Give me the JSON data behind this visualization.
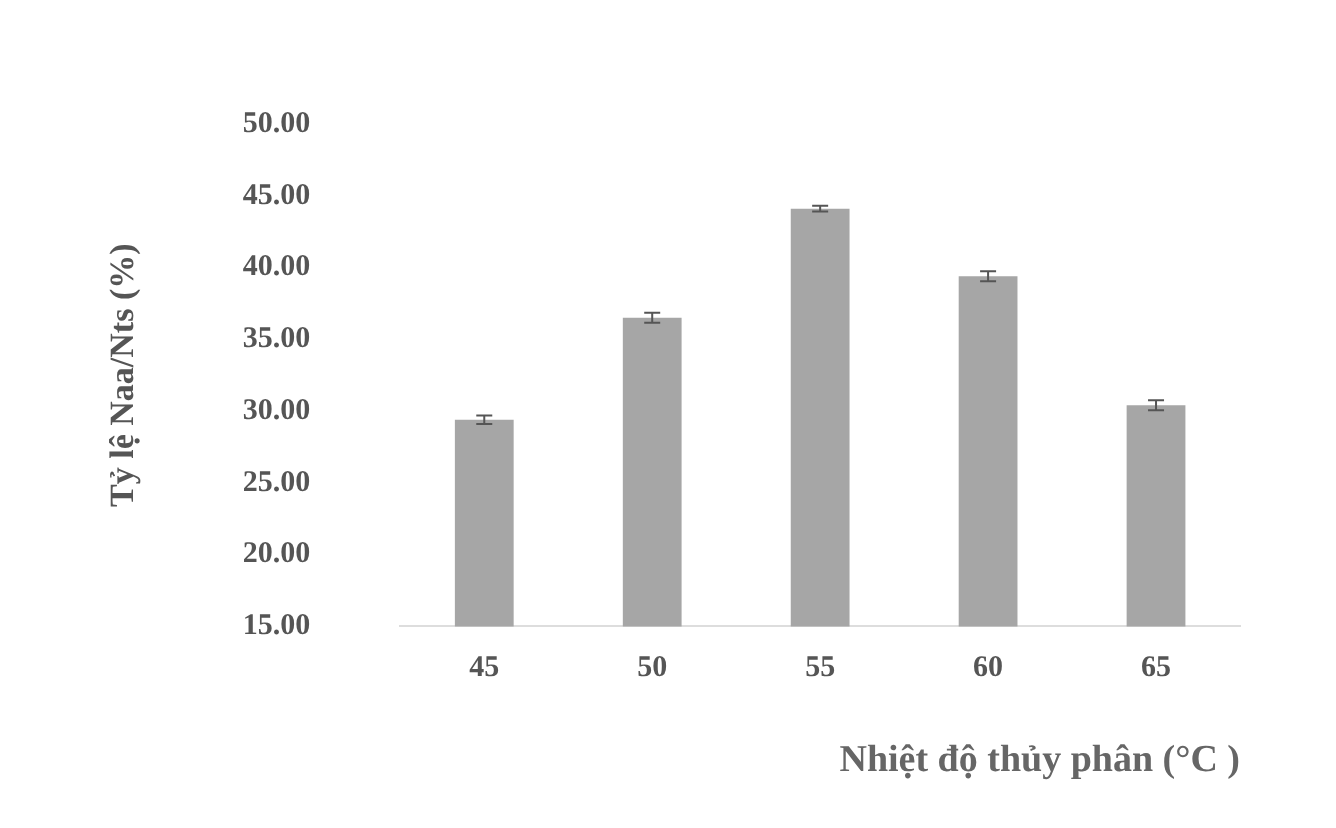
{
  "chart_data": {
    "type": "bar",
    "xlabel": "Nhiệt độ thủy phân (°C )",
    "ylabel": "Tỷ lệ Naa/Nts (%)",
    "categories": [
      "45",
      "50",
      "55",
      "60",
      "65"
    ],
    "values": [
      29.4,
      36.5,
      44.1,
      39.4,
      30.4
    ],
    "errors": [
      0.3,
      0.35,
      0.2,
      0.35,
      0.35
    ],
    "color": "#a6a6a6",
    "ylim": [
      15,
      50
    ],
    "yticks": [
      {
        "value": 15,
        "label": "15.00"
      },
      {
        "value": 20,
        "label": "20.00"
      },
      {
        "value": 25,
        "label": "25.00"
      },
      {
        "value": 30,
        "label": "30.00"
      },
      {
        "value": 35,
        "label": "35.00"
      },
      {
        "value": 40,
        "label": "40.00"
      },
      {
        "value": 45,
        "label": "45.00"
      },
      {
        "value": 50,
        "label": "50.00"
      }
    ],
    "grid": false,
    "legend": false
  }
}
